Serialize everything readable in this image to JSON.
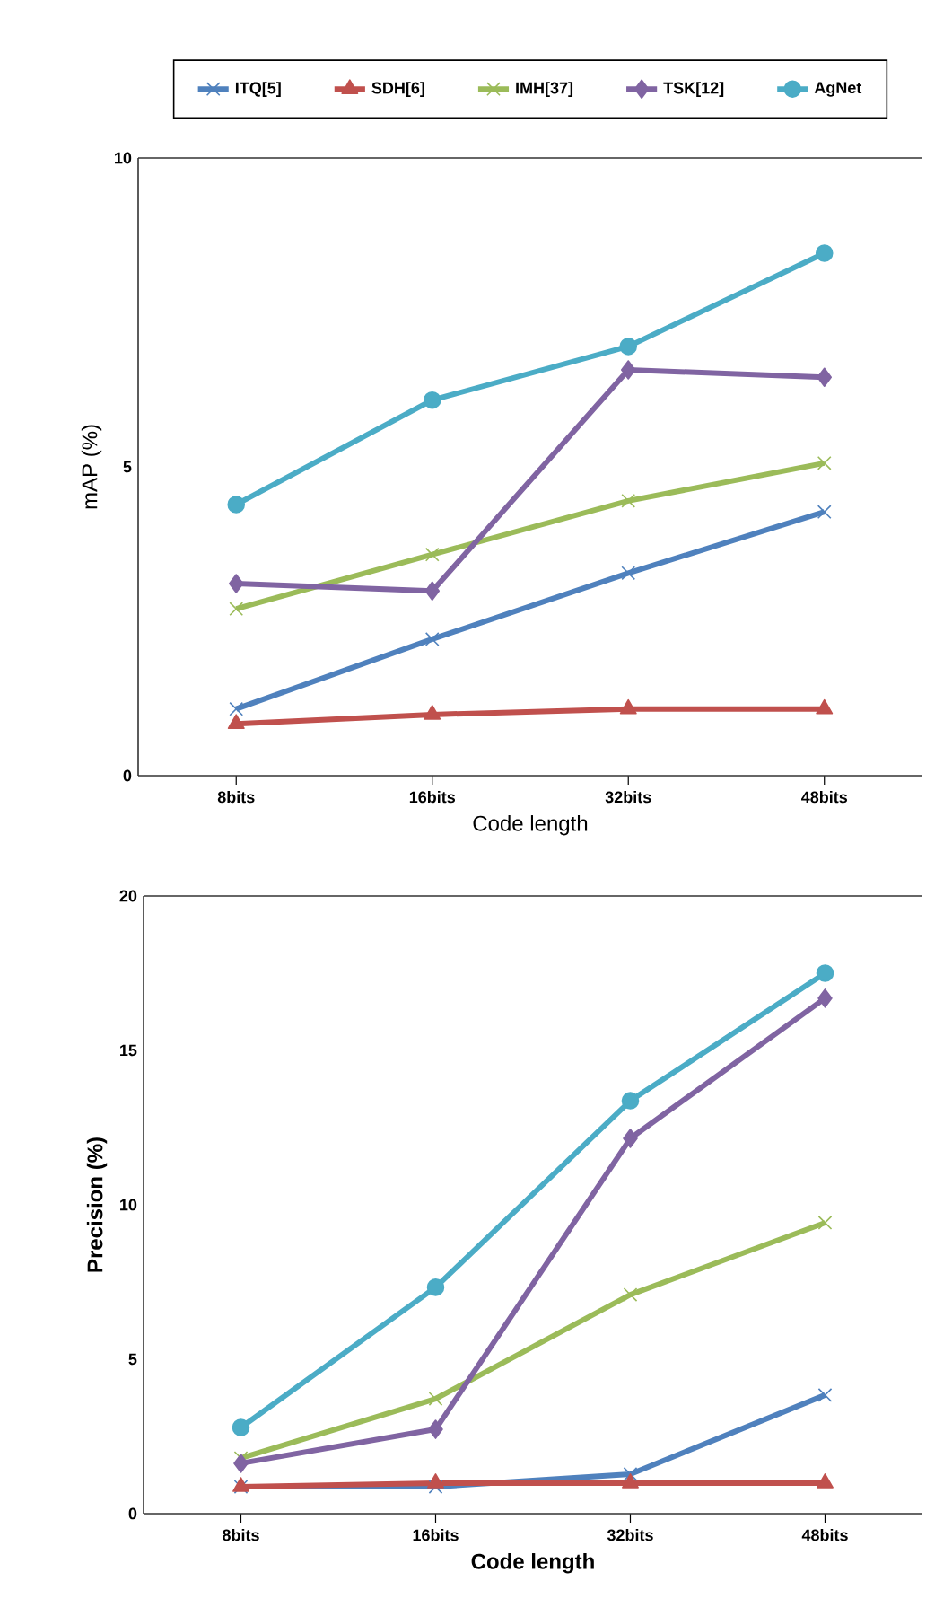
{
  "chart_data": [
    {
      "type": "line",
      "xlabel": "Code length",
      "ylabel": "mAP (%)",
      "categories": [
        "8bits",
        "16bits",
        "32bits",
        "48bits"
      ],
      "ylim": [
        0,
        10
      ],
      "yticks": [
        0,
        5,
        10
      ],
      "legend": "top",
      "grid": false,
      "series": [
        {
          "name": "ITQ[5]",
          "color": "#4f81bd",
          "marker": "cross",
          "values": [
            1.08,
            2.21,
            3.28,
            4.27
          ]
        },
        {
          "name": "SDH[6]",
          "color": "#c0504d",
          "marker": "triangle",
          "values": [
            0.84,
            0.99,
            1.08,
            1.08
          ]
        },
        {
          "name": "IMH[37]",
          "color": "#9bbb59",
          "marker": "cross",
          "values": [
            2.7,
            3.58,
            4.45,
            5.06
          ]
        },
        {
          "name": "TSK[12]",
          "color": "#8064a2",
          "marker": "diamond",
          "values": [
            3.11,
            2.99,
            6.57,
            6.45
          ]
        },
        {
          "name": "AgNet",
          "color": "#4bacc6",
          "marker": "circle",
          "values": [
            4.39,
            6.08,
            6.95,
            8.46
          ]
        }
      ]
    },
    {
      "type": "line",
      "xlabel": "Code length",
      "ylabel": "Precision (%)",
      "categories": [
        "8bits",
        "16bits",
        "32bits",
        "48bits"
      ],
      "ylim": [
        0,
        20
      ],
      "yticks": [
        0,
        5,
        10,
        15,
        20
      ],
      "grid": false,
      "series": [
        {
          "color": "#4f81bd",
          "marker": "cross",
          "values": [
            0.87,
            0.87,
            1.28,
            3.84
          ]
        },
        {
          "color": "#c0504d",
          "marker": "triangle",
          "values": [
            0.87,
            0.99,
            0.99,
            0.99
          ]
        },
        {
          "color": "#9bbb59",
          "marker": "cross",
          "values": [
            1.8,
            3.72,
            7.09,
            9.42
          ]
        },
        {
          "color": "#8064a2",
          "marker": "diamond",
          "values": [
            1.63,
            2.73,
            12.15,
            16.69
          ]
        },
        {
          "color": "#4bacc6",
          "marker": "circle",
          "values": [
            2.79,
            7.33,
            13.37,
            17.5
          ]
        }
      ]
    }
  ]
}
